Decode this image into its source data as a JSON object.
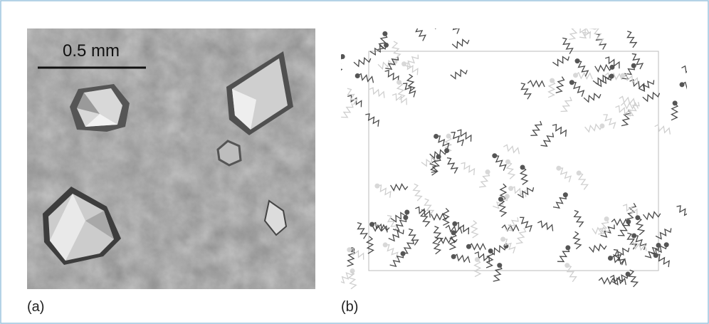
{
  "panels": [
    {
      "label": "(a)",
      "scale_bar": "0.5 mm"
    },
    {
      "label": "(b)"
    }
  ]
}
